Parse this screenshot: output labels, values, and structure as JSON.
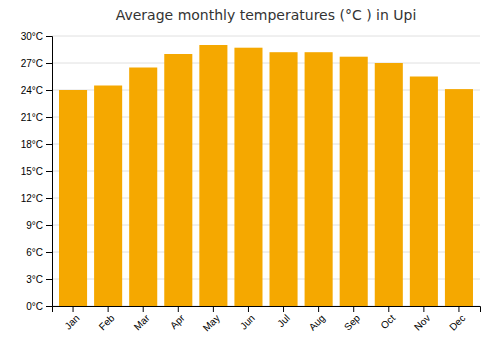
{
  "chart_data": {
    "type": "bar",
    "title": "Average monthly temperatures (°C ) in Upi",
    "categories": [
      "Jan",
      "Feb",
      "Mar",
      "Apr",
      "May",
      "Jun",
      "Jul",
      "Aug",
      "Sep",
      "Oct",
      "Nov",
      "Dec"
    ],
    "values": [
      24.0,
      24.5,
      26.5,
      28.0,
      29.0,
      28.7,
      28.2,
      28.2,
      27.7,
      27.0,
      25.5,
      24.1
    ],
    "color": "#F5A800",
    "ylim": [
      0,
      30
    ],
    "yticks": [
      {
        "value": 0,
        "label": "0°C"
      },
      {
        "value": 3,
        "label": "3°C"
      },
      {
        "value": 6,
        "label": "6°C"
      },
      {
        "value": 9,
        "label": "9°C"
      },
      {
        "value": 12,
        "label": "12°C"
      },
      {
        "value": 15,
        "label": "15°C"
      },
      {
        "value": 18,
        "label": "18°C"
      },
      {
        "value": 21,
        "label": "21°C"
      },
      {
        "value": 24,
        "label": "24°C"
      },
      {
        "value": 27,
        "label": "27°C"
      },
      {
        "value": 30,
        "label": "30°C"
      }
    ],
    "grid": true
  }
}
